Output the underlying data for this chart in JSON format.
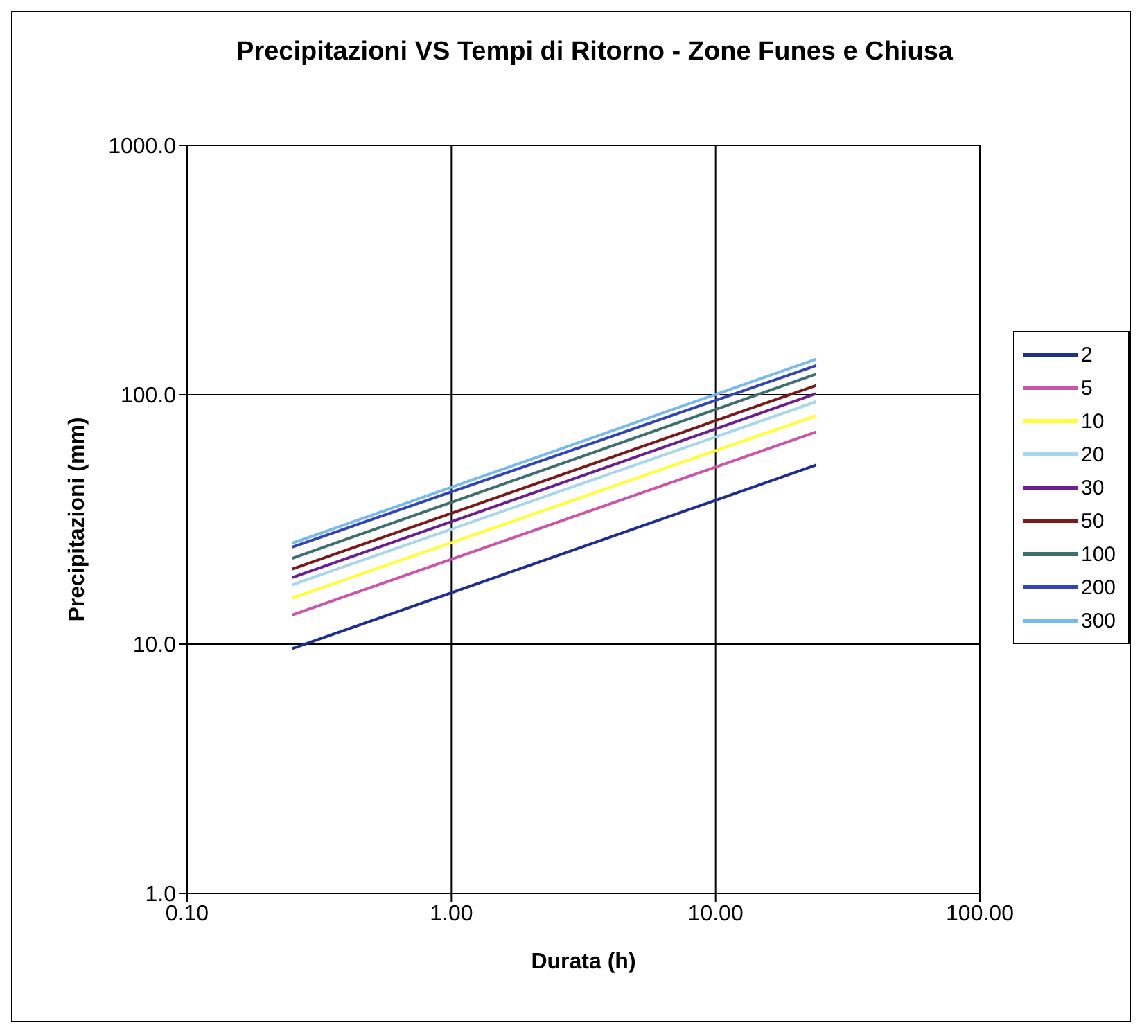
{
  "chart_data": {
    "type": "line",
    "title": "Precipitazioni VS Tempi di Ritorno - Zone Funes e Chiusa",
    "xlabel": "Durata (h)",
    "ylabel": "Precipitazioni (mm)",
    "x": [
      0.25,
      24
    ],
    "series": [
      {
        "name": "2",
        "color": "#1f2f8f",
        "values": [
          9.6,
          52.3
        ]
      },
      {
        "name": "5",
        "color": "#cc55aa",
        "values": [
          13.1,
          71
        ]
      },
      {
        "name": "10",
        "color": "#ffff33",
        "values": [
          15.3,
          82.5
        ]
      },
      {
        "name": "20",
        "color": "#a6d8e8",
        "values": [
          17.3,
          93.8
        ]
      },
      {
        "name": "30",
        "color": "#6a2090",
        "values": [
          18.5,
          101
        ]
      },
      {
        "name": "50",
        "color": "#7a1a1a",
        "values": [
          20.0,
          109
        ]
      },
      {
        "name": "100",
        "color": "#3f7070",
        "values": [
          22.1,
          121
        ]
      },
      {
        "name": "200",
        "color": "#3344bb",
        "values": [
          24.5,
          131
        ]
      },
      {
        "name": "300",
        "color": "#77bbee",
        "values": [
          25.4,
          139
        ]
      }
    ],
    "xlim": [
      0.1,
      100
    ],
    "xticks": [
      {
        "value": 0.1,
        "label": "0.10"
      },
      {
        "value": 1,
        "label": "1.00"
      },
      {
        "value": 10,
        "label": "10.00"
      },
      {
        "value": 100,
        "label": "100.00"
      }
    ],
    "ylim": [
      1,
      1000
    ],
    "yticks": [
      {
        "value": 1,
        "label": "1.0"
      },
      {
        "value": 10,
        "label": "10.0"
      },
      {
        "value": 100,
        "label": "100.0"
      },
      {
        "value": 1000,
        "label": "1000.0"
      }
    ],
    "log": "xy",
    "grid": true,
    "legend": "right",
    "marker": "none",
    "line_style": "solid"
  }
}
